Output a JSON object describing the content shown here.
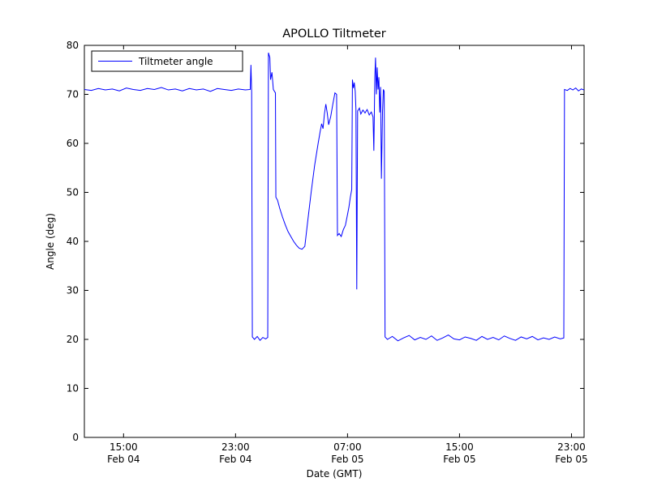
{
  "chart_data": {
    "type": "line",
    "title": "APOLLO Tiltmeter",
    "xlabel": "Date (GMT)",
    "ylabel": "Angle (deg)",
    "legend": {
      "entries": [
        "Tiltmeter angle"
      ],
      "position": "upper left"
    },
    "line_color": "#0000ff",
    "axes_color": "#000000",
    "background_color": "#ffffff",
    "grid": false,
    "xlim": [
      12.2,
      47.9
    ],
    "ylim": [
      0,
      80
    ],
    "y_ticks": [
      0,
      10,
      20,
      30,
      40,
      50,
      60,
      70,
      80
    ],
    "x_ticks": [
      {
        "value": 15,
        "time": "15:00",
        "date": "Feb 04"
      },
      {
        "value": 23,
        "time": "23:00",
        "date": "Feb 04"
      },
      {
        "value": 31,
        "time": "07:00",
        "date": "Feb 05"
      },
      {
        "value": 39,
        "time": "15:00",
        "date": "Feb 05"
      },
      {
        "value": 47,
        "time": "23:00",
        "date": "Feb 05"
      }
    ],
    "x_unit": "hours since Feb 04 00:00 GMT",
    "series": [
      {
        "name": "Tiltmeter angle",
        "points": [
          [
            12.2,
            71.0
          ],
          [
            12.7,
            70.8
          ],
          [
            13.2,
            71.2
          ],
          [
            13.7,
            70.9
          ],
          [
            14.2,
            71.1
          ],
          [
            14.7,
            70.7
          ],
          [
            15.2,
            71.3
          ],
          [
            15.7,
            71.0
          ],
          [
            16.2,
            70.8
          ],
          [
            16.7,
            71.2
          ],
          [
            17.2,
            71.0
          ],
          [
            17.7,
            71.4
          ],
          [
            18.2,
            70.9
          ],
          [
            18.7,
            71.1
          ],
          [
            19.2,
            70.7
          ],
          [
            19.7,
            71.2
          ],
          [
            20.2,
            70.9
          ],
          [
            20.7,
            71.1
          ],
          [
            21.2,
            70.6
          ],
          [
            21.7,
            71.2
          ],
          [
            22.2,
            71.0
          ],
          [
            22.7,
            70.8
          ],
          [
            23.2,
            71.1
          ],
          [
            23.7,
            70.9
          ],
          [
            24.05,
            71.0
          ],
          [
            24.1,
            76.0
          ],
          [
            24.15,
            70.5
          ],
          [
            24.2,
            20.5
          ],
          [
            24.35,
            20.0
          ],
          [
            24.55,
            20.6
          ],
          [
            24.75,
            19.8
          ],
          [
            24.95,
            20.4
          ],
          [
            25.15,
            20.1
          ],
          [
            25.3,
            20.4
          ],
          [
            25.35,
            78.5
          ],
          [
            25.45,
            77.5
          ],
          [
            25.5,
            73.0
          ],
          [
            25.6,
            74.5
          ],
          [
            25.7,
            71.0
          ],
          [
            25.85,
            70.3
          ],
          [
            25.88,
            49.0
          ],
          [
            26.0,
            48.4
          ],
          [
            26.15,
            46.8
          ],
          [
            26.35,
            45.0
          ],
          [
            26.55,
            43.4
          ],
          [
            26.75,
            42.0
          ],
          [
            26.95,
            41.0
          ],
          [
            27.15,
            40.0
          ],
          [
            27.35,
            39.2
          ],
          [
            27.55,
            38.6
          ],
          [
            27.75,
            38.4
          ],
          [
            27.95,
            39.0
          ],
          [
            28.15,
            44.0
          ],
          [
            28.4,
            50.0
          ],
          [
            28.65,
            55.5
          ],
          [
            28.9,
            60.0
          ],
          [
            29.05,
            62.5
          ],
          [
            29.15,
            64.0
          ],
          [
            29.25,
            63.0
          ],
          [
            29.35,
            66.0
          ],
          [
            29.45,
            68.0
          ],
          [
            29.55,
            66.2
          ],
          [
            29.65,
            63.8
          ],
          [
            29.8,
            65.5
          ],
          [
            29.95,
            68.0
          ],
          [
            30.1,
            70.3
          ],
          [
            30.22,
            70.0
          ],
          [
            30.28,
            41.2
          ],
          [
            30.4,
            41.6
          ],
          [
            30.55,
            41.0
          ],
          [
            30.7,
            42.4
          ],
          [
            30.85,
            43.3
          ],
          [
            31.0,
            45.5
          ],
          [
            31.1,
            47.0
          ],
          [
            31.2,
            49.0
          ],
          [
            31.3,
            50.6
          ],
          [
            31.35,
            73.0
          ],
          [
            31.42,
            71.3
          ],
          [
            31.48,
            72.4
          ],
          [
            31.55,
            70.6
          ],
          [
            31.6,
            67.0
          ],
          [
            31.66,
            30.2
          ],
          [
            31.72,
            66.6
          ],
          [
            31.85,
            67.2
          ],
          [
            31.95,
            66.0
          ],
          [
            32.1,
            66.8
          ],
          [
            32.25,
            66.2
          ],
          [
            32.4,
            66.9
          ],
          [
            32.55,
            65.8
          ],
          [
            32.7,
            66.4
          ],
          [
            32.82,
            65.4
          ],
          [
            32.88,
            58.5
          ],
          [
            32.95,
            73.5
          ],
          [
            33.0,
            77.5
          ],
          [
            33.06,
            70.0
          ],
          [
            33.12,
            75.5
          ],
          [
            33.18,
            71.0
          ],
          [
            33.24,
            73.5
          ],
          [
            33.3,
            66.3
          ],
          [
            33.36,
            71.5
          ],
          [
            33.42,
            52.8
          ],
          [
            33.5,
            66.5
          ],
          [
            33.56,
            71.0
          ],
          [
            33.62,
            70.6
          ],
          [
            33.68,
            20.5
          ],
          [
            33.85,
            20.0
          ],
          [
            34.2,
            20.6
          ],
          [
            34.6,
            19.7
          ],
          [
            35.0,
            20.3
          ],
          [
            35.4,
            20.8
          ],
          [
            35.8,
            19.9
          ],
          [
            36.2,
            20.4
          ],
          [
            36.6,
            20.0
          ],
          [
            37.0,
            20.7
          ],
          [
            37.4,
            19.8
          ],
          [
            37.8,
            20.3
          ],
          [
            38.2,
            20.9
          ],
          [
            38.6,
            20.1
          ],
          [
            39.0,
            19.9
          ],
          [
            39.4,
            20.5
          ],
          [
            39.8,
            20.2
          ],
          [
            40.2,
            19.8
          ],
          [
            40.6,
            20.6
          ],
          [
            41.0,
            20.0
          ],
          [
            41.4,
            20.4
          ],
          [
            41.8,
            19.9
          ],
          [
            42.2,
            20.7
          ],
          [
            42.6,
            20.2
          ],
          [
            43.0,
            19.8
          ],
          [
            43.4,
            20.5
          ],
          [
            43.8,
            20.1
          ],
          [
            44.2,
            20.6
          ],
          [
            44.6,
            19.9
          ],
          [
            45.0,
            20.3
          ],
          [
            45.4,
            20.0
          ],
          [
            45.8,
            20.5
          ],
          [
            46.2,
            20.1
          ],
          [
            46.45,
            20.3
          ],
          [
            46.5,
            71.0
          ],
          [
            46.7,
            70.8
          ],
          [
            46.9,
            71.2
          ],
          [
            47.1,
            70.9
          ],
          [
            47.3,
            71.3
          ],
          [
            47.5,
            70.7
          ],
          [
            47.7,
            71.1
          ],
          [
            47.9,
            70.9
          ]
        ]
      }
    ]
  }
}
